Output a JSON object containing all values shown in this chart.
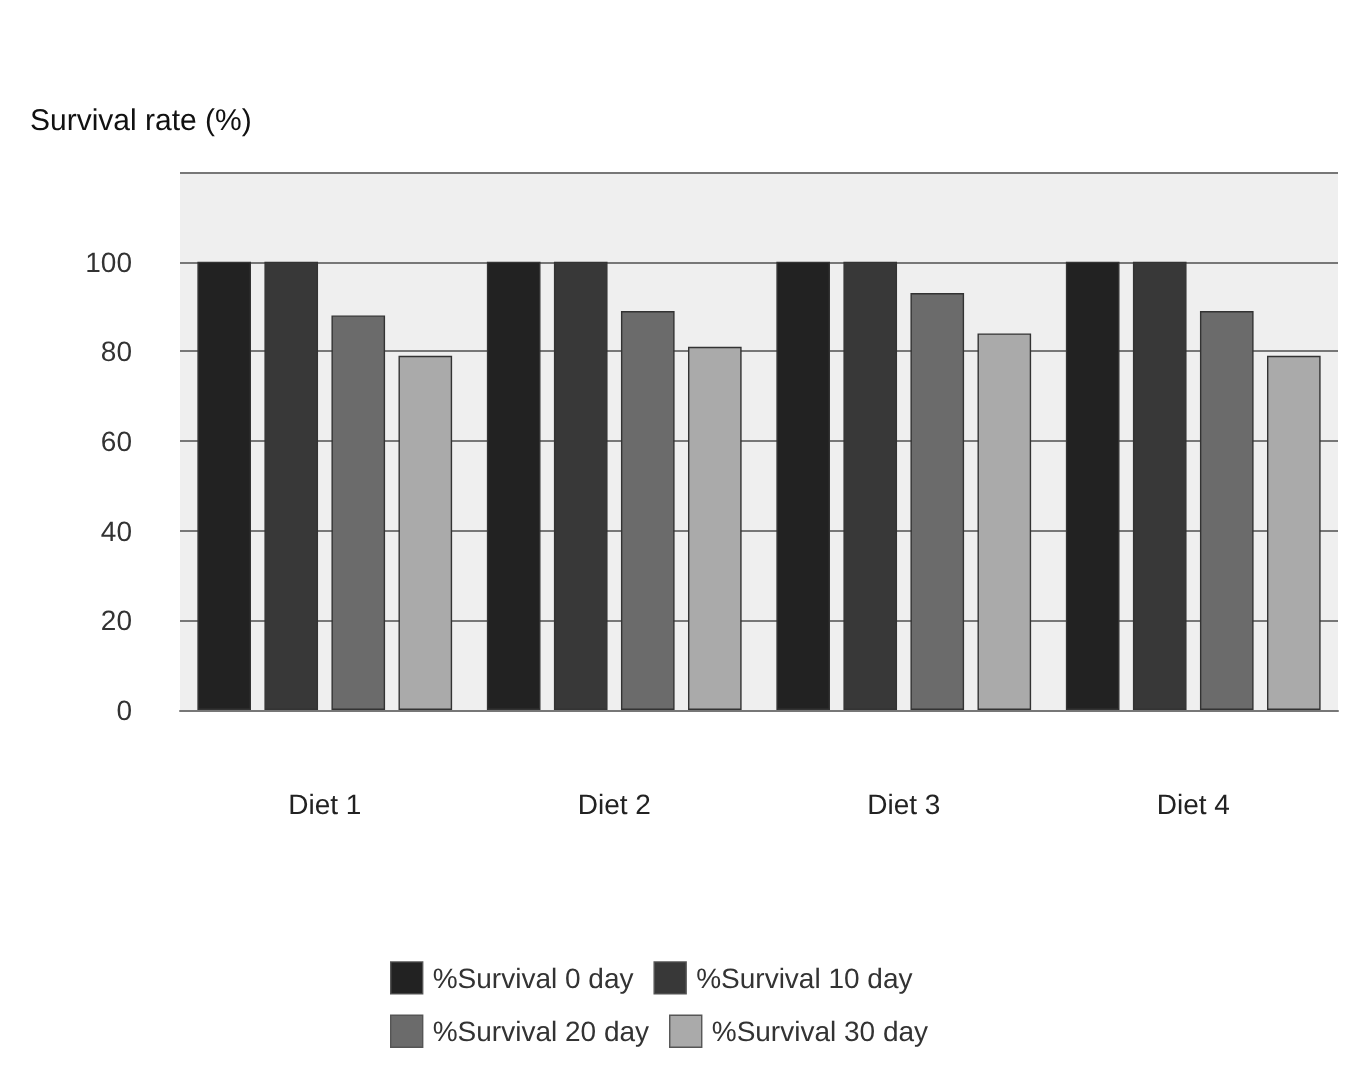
{
  "chart_data": {
    "type": "bar",
    "ylabel": "Survival rate (%)",
    "categories": [
      "Diet 1",
      "Diet 2",
      "Diet 3",
      "Diet 4"
    ],
    "series": [
      {
        "name": "%Survival 0 day",
        "color": "#222222",
        "values": [
          100,
          100,
          100,
          100
        ]
      },
      {
        "name": "%Survival 10 day",
        "color": "#383838",
        "values": [
          100,
          100,
          100,
          100
        ]
      },
      {
        "name": "%Survival 20 day",
        "color": "#6b6b6b",
        "values": [
          88,
          89,
          93,
          89
        ]
      },
      {
        "name": "%Survival 30 day",
        "color": "#aaaaaa",
        "values": [
          79,
          81,
          84,
          79
        ]
      }
    ],
    "ylim": [
      0,
      120
    ],
    "yticks": [
      0,
      20,
      40,
      60,
      80,
      100,
      {
        "value": 120,
        "label": null
      }
    ],
    "grid": "y",
    "legend": "bottom"
  }
}
